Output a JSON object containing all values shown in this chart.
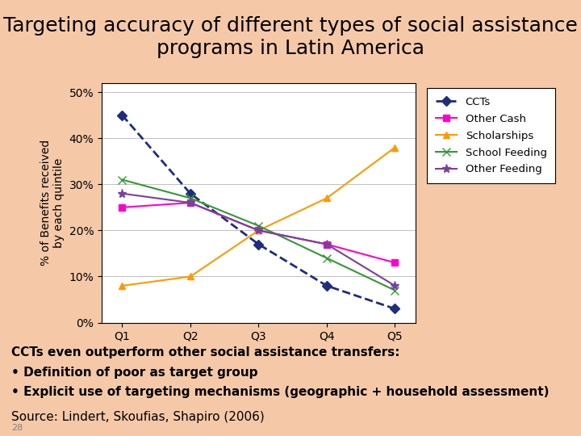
{
  "title": "Targeting accuracy of different types of social assistance\nprograms in Latin America",
  "title_fontsize": 18,
  "xlabel": "",
  "ylabel": "% of Benefits received\nby each quintile",
  "categories": [
    "Q1",
    "Q2",
    "Q3",
    "Q4",
    "Q5"
  ],
  "series": {
    "CCTs": {
      "values": [
        45,
        28,
        17,
        8,
        3
      ],
      "color": "#1f2d7e",
      "linestyle": "--",
      "marker": "D",
      "markersize": 6,
      "linewidth": 2.0
    },
    "Other Cash": {
      "values": [
        25,
        26,
        20,
        17,
        13
      ],
      "color": "#ff00cc",
      "linestyle": "-",
      "marker": "s",
      "markersize": 6,
      "linewidth": 1.5
    },
    "Scholarships": {
      "values": [
        8,
        10,
        20,
        27,
        38
      ],
      "color": "#ff9900",
      "linestyle": "-",
      "marker": "^",
      "markersize": 6,
      "linewidth": 1.5
    },
    "School Feeding": {
      "values": [
        31,
        27,
        21,
        14,
        7
      ],
      "color": "#339933",
      "linestyle": "-",
      "marker": "x",
      "markersize": 7,
      "linewidth": 1.5
    },
    "Other Feeding": {
      "values": [
        28,
        26,
        20,
        17,
        8
      ],
      "color": "#7b3f9e",
      "linestyle": "-",
      "marker": "*",
      "markersize": 8,
      "linewidth": 1.5
    }
  },
  "yticks": [
    0,
    10,
    20,
    30,
    40,
    50
  ],
  "ytick_labels": [
    "0%",
    "10%",
    "20%",
    "30%",
    "40%",
    "50%"
  ],
  "ylim": [
    0,
    52
  ],
  "annotation_line1": "CCTs even outperform other social assistance transfers:",
  "annotation_line2": "• Definition of poor as target group",
  "annotation_line3": "• Explicit use of targeting mechanisms (geographic + household assessment)",
  "source_text": "Source: Lindert, Skoufias, Shapiro (2006)",
  "page_number": "28",
  "chart_bg": "#ffffff",
  "outer_bg": "#f5c9a8",
  "text_fontsize": 11,
  "tick_fontsize": 10,
  "ylabel_fontsize": 10
}
